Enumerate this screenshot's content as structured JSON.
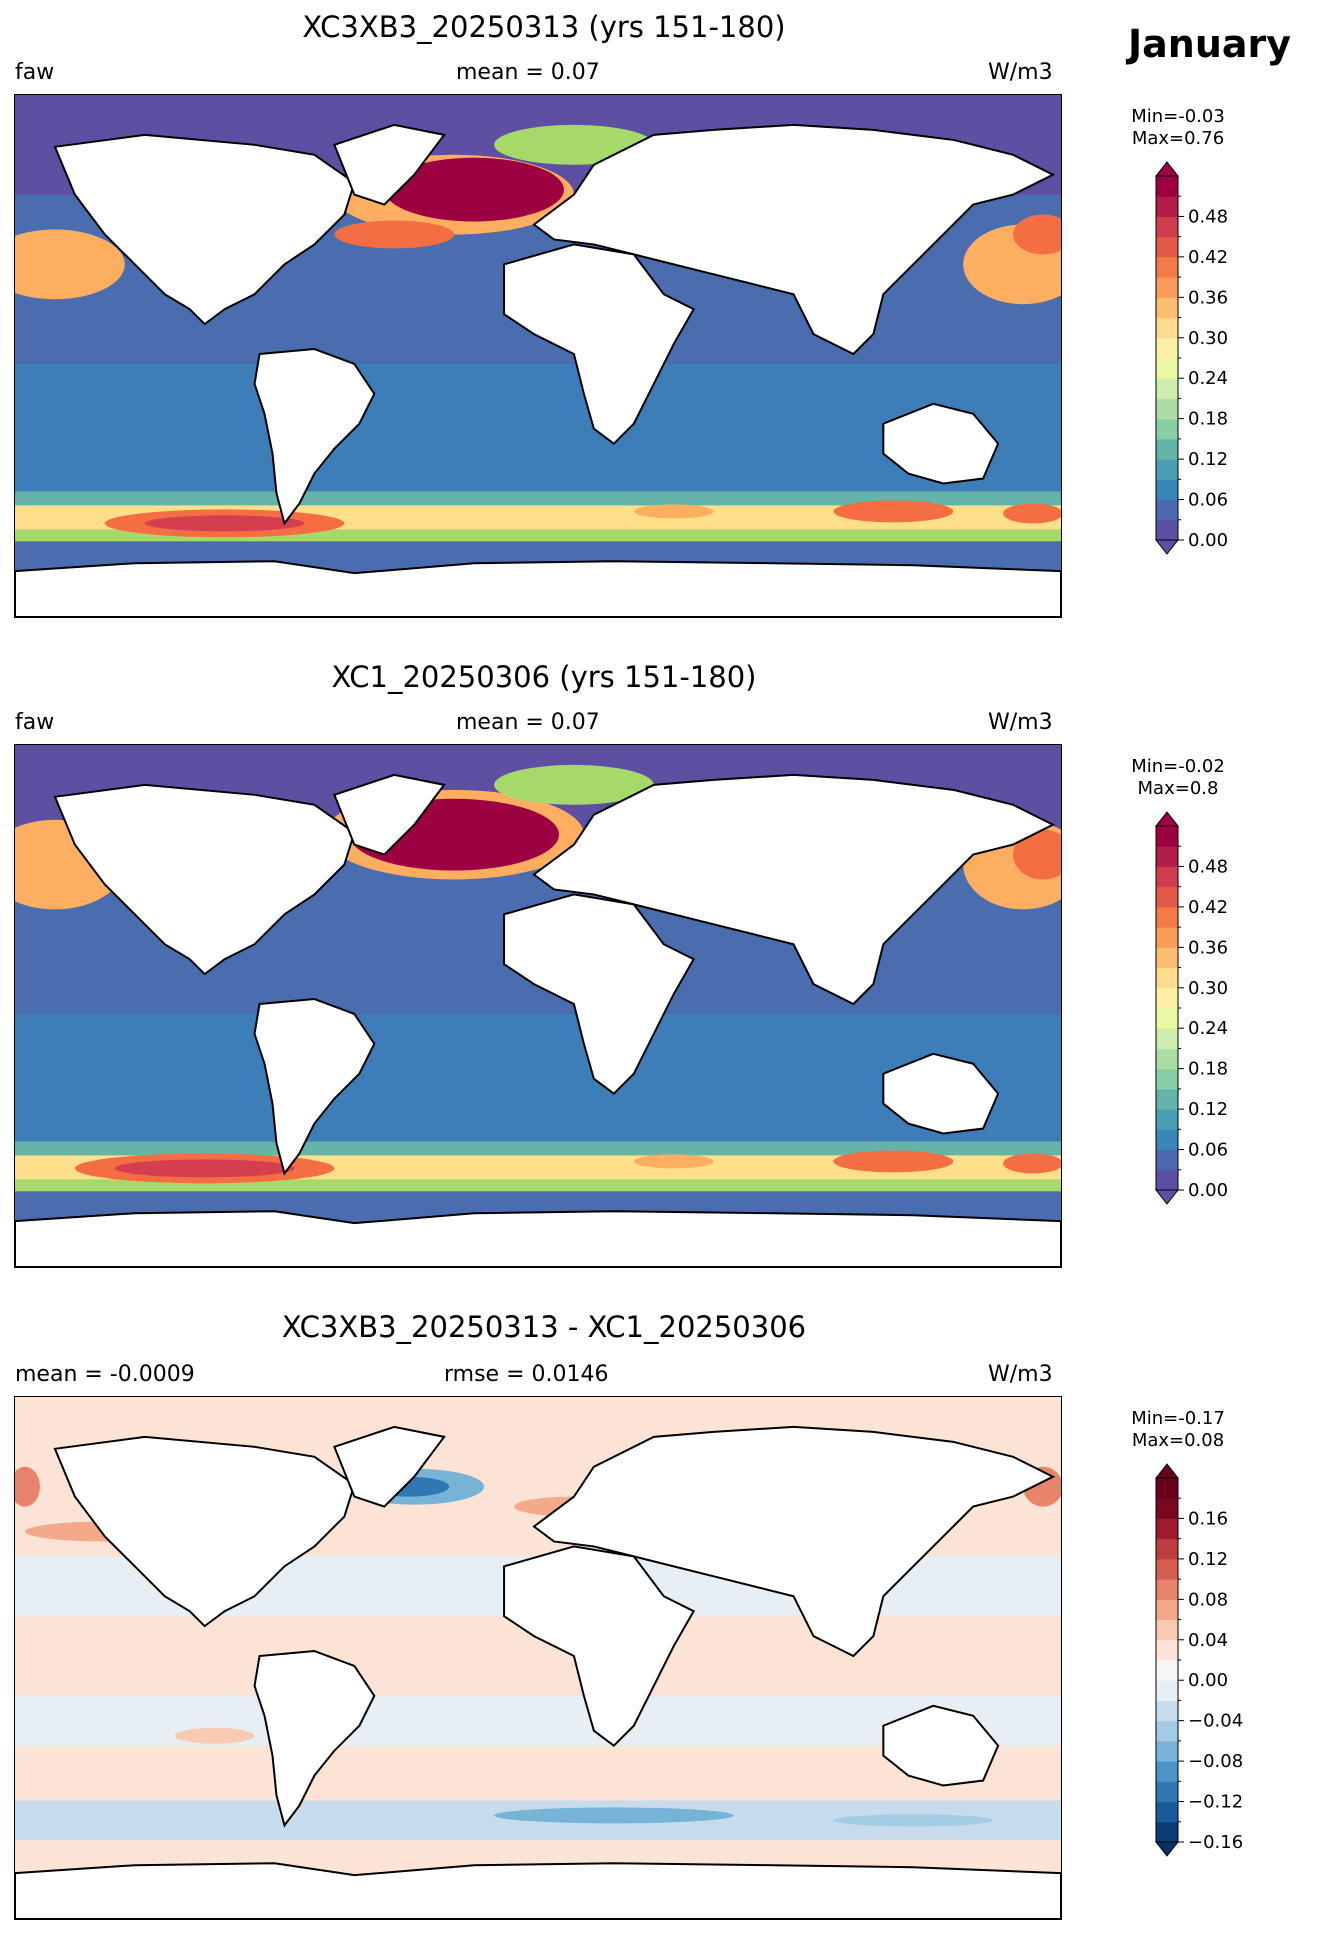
{
  "month": "January",
  "panels": [
    {
      "title": "XC3XB3_20250313 (yrs 151-180)",
      "left_label": "faw",
      "center_label": "mean = 0.07",
      "right_label": "W/m3",
      "min_label": "Min=-0.03",
      "max_label": "Max=0.76",
      "colormap": "Spectral_r",
      "colorbar_ticks": [
        "0.00",
        "0.06",
        "0.12",
        "0.18",
        "0.24",
        "0.30",
        "0.36",
        "0.42",
        "0.48"
      ],
      "colorbar_colors": [
        "#5e4fa2",
        "#4c69ad",
        "#3a86b9",
        "#47a0b3",
        "#65b4aa",
        "#89cfa5",
        "#acdda4",
        "#d0ecac",
        "#ecf7a2",
        "#fbf0a5",
        "#fedb8a",
        "#fdbf6f",
        "#fa9b58",
        "#f47a48",
        "#e35a49",
        "#cf3c4c",
        "#b21c48",
        "#9e0142"
      ],
      "color_over": "#9e0142",
      "color_under": "#5e4fa2"
    },
    {
      "title": "XC1_20250306 (yrs 151-180)",
      "left_label": "faw",
      "center_label": "mean = 0.07",
      "right_label": "W/m3",
      "min_label": "Min=-0.02",
      "max_label": "Max=0.8",
      "colormap": "Spectral_r",
      "colorbar_ticks": [
        "0.00",
        "0.06",
        "0.12",
        "0.18",
        "0.24",
        "0.30",
        "0.36",
        "0.42",
        "0.48"
      ],
      "colorbar_colors": [
        "#5e4fa2",
        "#4c69ad",
        "#3a86b9",
        "#47a0b3",
        "#65b4aa",
        "#89cfa5",
        "#acdda4",
        "#d0ecac",
        "#ecf7a2",
        "#fbf0a5",
        "#fedb8a",
        "#fdbf6f",
        "#fa9b58",
        "#f47a48",
        "#e35a49",
        "#cf3c4c",
        "#b21c48",
        "#9e0142"
      ],
      "color_over": "#9e0142",
      "color_under": "#5e4fa2"
    },
    {
      "title": "XC3XB3_20250313 - XC1_20250306",
      "left_label": "mean = -0.0009",
      "center_label": "rmse = 0.0146",
      "right_label": "W/m3",
      "min_label": "Min=-0.17",
      "max_label": "Max=0.08",
      "colormap": "RdBu_r",
      "colorbar_ticks": [
        "−0.16",
        "−0.12",
        "−0.08",
        "−0.04",
        "0.00",
        "0.04",
        "0.08",
        "0.12",
        "0.16"
      ],
      "colorbar_colors": [
        "#0b3c74",
        "#1a5b9c",
        "#2f78b4",
        "#4a94c6",
        "#77b2d7",
        "#a3cbe3",
        "#c6dcec",
        "#e7eef4",
        "#f6f6f6",
        "#fbe3d6",
        "#f9cab1",
        "#f3a98a",
        "#e7846a",
        "#d45e4f",
        "#bc3d3e",
        "#9d1b2d",
        "#7a0822",
        "#6a001d"
      ],
      "color_over": "#67001f",
      "color_under": "#053061"
    }
  ]
}
